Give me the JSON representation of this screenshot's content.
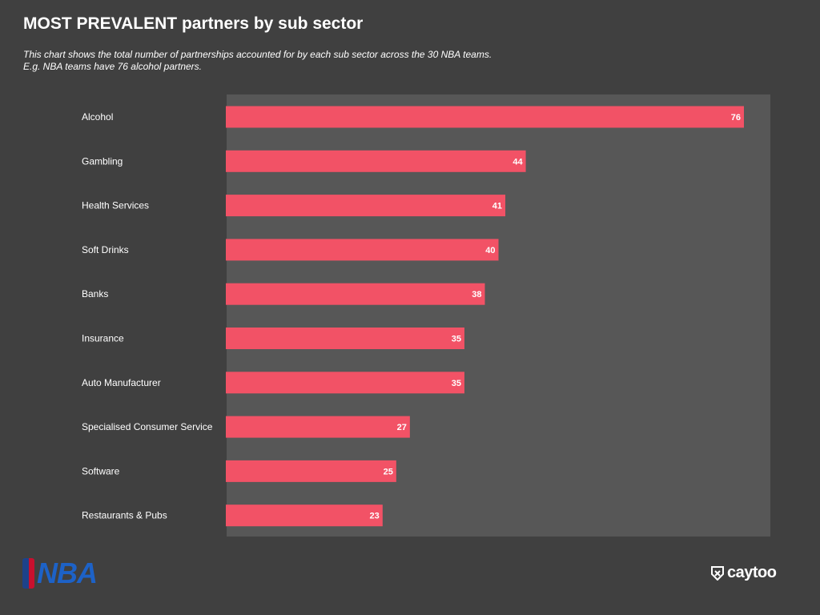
{
  "title": "MOST PREVALENT partners by sub sector",
  "subtitle_lines": [
    "This chart shows the total number of partnerships accounted for by each sub sector across the 30 NBA teams.",
    "E.g. NBA teams have 76 alcohol partners."
  ],
  "logos": {
    "left": "NBA",
    "right": "caytoo"
  },
  "colors": {
    "background": "#404040",
    "plot_background": "#575757",
    "bar": "#f25266",
    "text": "#ffffff"
  },
  "chart_data": {
    "type": "bar",
    "orientation": "horizontal",
    "categories": [
      "Alcohol",
      "Gambling",
      "Health Services",
      "Soft Drinks",
      "Banks",
      "Insurance",
      "Auto Manufacturer",
      "Specialised Consumer Service",
      "Software",
      "Restaurants & Pubs"
    ],
    "values": [
      76,
      44,
      41,
      40,
      38,
      35,
      35,
      27,
      25,
      23
    ],
    "xlim": [
      0,
      80
    ],
    "grid": false,
    "legend": "none"
  }
}
